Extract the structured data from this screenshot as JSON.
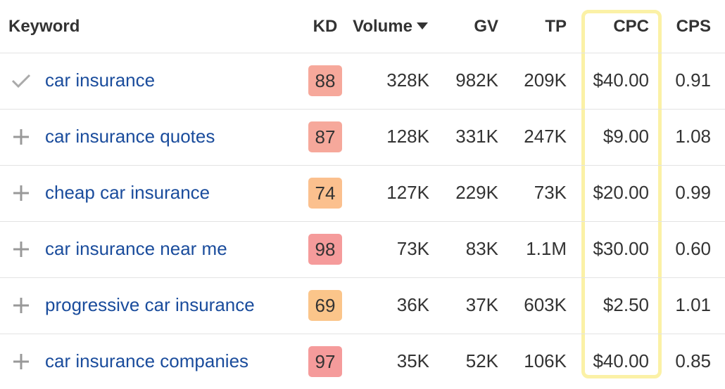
{
  "table": {
    "columns": [
      "Keyword",
      "KD",
      "Volume",
      "GV",
      "TP",
      "CPC",
      "CPS"
    ],
    "sort_column": 2,
    "highlight_column": 5,
    "rows": [
      {
        "added": true,
        "keyword": "car insurance",
        "kd": 88,
        "kd_color": "#f6a89b",
        "volume": "328K",
        "gv": "982K",
        "tp": "209K",
        "cpc": "$40.00",
        "cps": "0.91"
      },
      {
        "added": false,
        "keyword": "car insurance quotes",
        "kd": 87,
        "kd_color": "#f6a89b",
        "volume": "128K",
        "gv": "331K",
        "tp": "247K",
        "cpc": "$9.00",
        "cps": "1.08"
      },
      {
        "added": false,
        "keyword": "cheap car insurance",
        "kd": 74,
        "kd_color": "#fbc08e",
        "volume": "127K",
        "gv": "229K",
        "tp": "73K",
        "cpc": "$20.00",
        "cps": "0.99"
      },
      {
        "added": false,
        "keyword": "car insurance near me",
        "kd": 98,
        "kd_color": "#f59b9b",
        "volume": "73K",
        "gv": "83K",
        "tp": "1.1M",
        "cpc": "$30.00",
        "cps": "0.60"
      },
      {
        "added": false,
        "keyword": "progressive car insurance",
        "kd": 69,
        "kd_color": "#fbc58a",
        "volume": "36K",
        "gv": "37K",
        "tp": "603K",
        "cpc": "$2.50",
        "cps": "1.01"
      },
      {
        "added": false,
        "keyword": "car insurance companies",
        "kd": 97,
        "kd_color": "#f59b9b",
        "volume": "35K",
        "gv": "52K",
        "tp": "106K",
        "cpc": "$40.00",
        "cps": "0.85"
      }
    ]
  }
}
